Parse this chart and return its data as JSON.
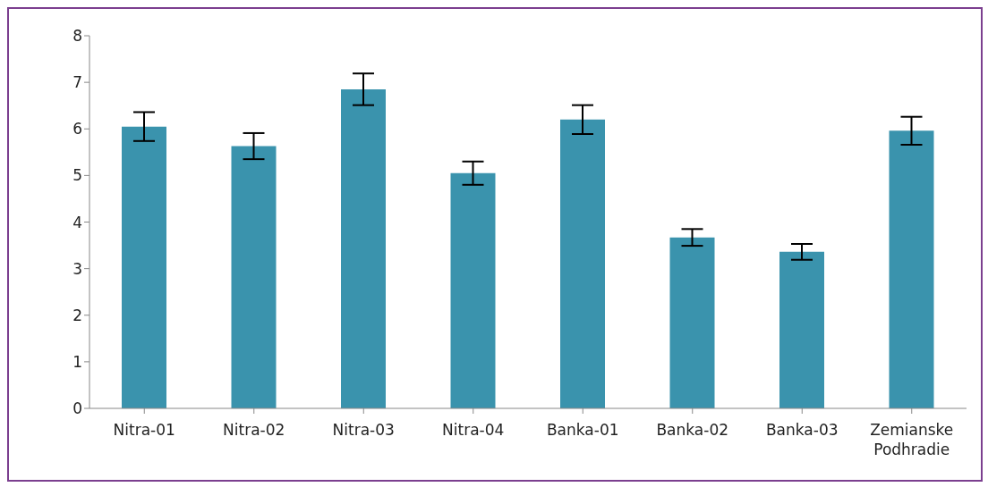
{
  "chart_data": {
    "type": "bar",
    "categories": [
      "Nitra-01",
      "Nitra-02",
      "Nitra-03",
      "Nitra-04",
      "Banka-01",
      "Banka-02",
      "Banka-03",
      "Zemianske Podhradie"
    ],
    "values": [
      6.05,
      5.63,
      6.85,
      5.05,
      6.2,
      3.67,
      3.36,
      5.96
    ],
    "errors": [
      0.31,
      0.28,
      0.34,
      0.25,
      0.31,
      0.18,
      0.17,
      0.3
    ],
    "color": "#3a93ad",
    "ylim": [
      0,
      8
    ],
    "yticks": [
      0,
      1,
      2,
      3,
      4,
      5,
      6,
      7,
      8
    ],
    "grid": false,
    "legend": false
  }
}
